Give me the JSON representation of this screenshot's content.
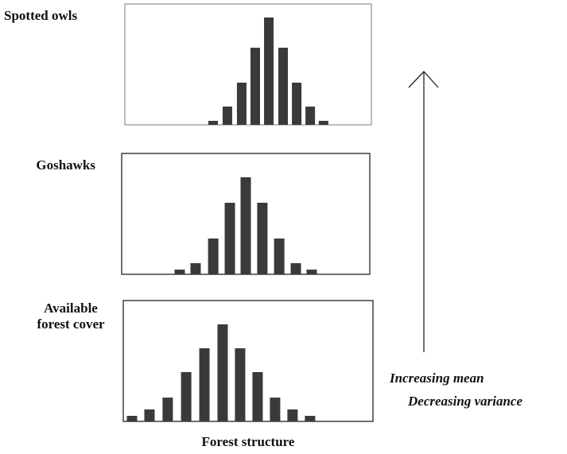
{
  "chart_data": [
    {
      "type": "bar",
      "title": "Spotted owls",
      "color": "#3a3a3a",
      "xlim": [
        0,
        100
      ],
      "ylim": [
        0,
        100
      ],
      "x": [
        35.8,
        41.6,
        47.4,
        52.9,
        58.4,
        64.2,
        69.7,
        75.2,
        80.6
      ],
      "values": [
        3.3,
        15.1,
        34.9,
        63.8,
        88.8,
        63.8,
        34.9,
        15.1,
        3.3
      ]
    },
    {
      "type": "bar",
      "title": "Goshawks",
      "color": "#3a3a3a",
      "xlim": [
        0,
        100
      ],
      "ylim": [
        0,
        100
      ],
      "x": [
        23.4,
        29.8,
        36.9,
        43.6,
        50,
        56.7,
        63.5,
        70.2,
        76.6
      ],
      "values": [
        3.9,
        9.2,
        29.6,
        59.2,
        80.3,
        59.2,
        29.6,
        9.2,
        3.9
      ]
    },
    {
      "type": "bar",
      "title": "Available forest cover",
      "xlabel": "Forest structure",
      "color": "#3a3a3a",
      "xlim": [
        0,
        100
      ],
      "ylim": [
        0,
        100
      ],
      "x": [
        3.5,
        10.5,
        17.8,
        25.2,
        32.5,
        39.8,
        46.8,
        53.8,
        60.8,
        67.8,
        74.8
      ],
      "values": [
        4.6,
        9.9,
        19.7,
        40.8,
        60.5,
        80.3,
        60.5,
        40.8,
        19.7,
        9.9,
        4.6
      ]
    }
  ],
  "annotations": [
    "Increasing mean",
    "Decreasing variance"
  ]
}
